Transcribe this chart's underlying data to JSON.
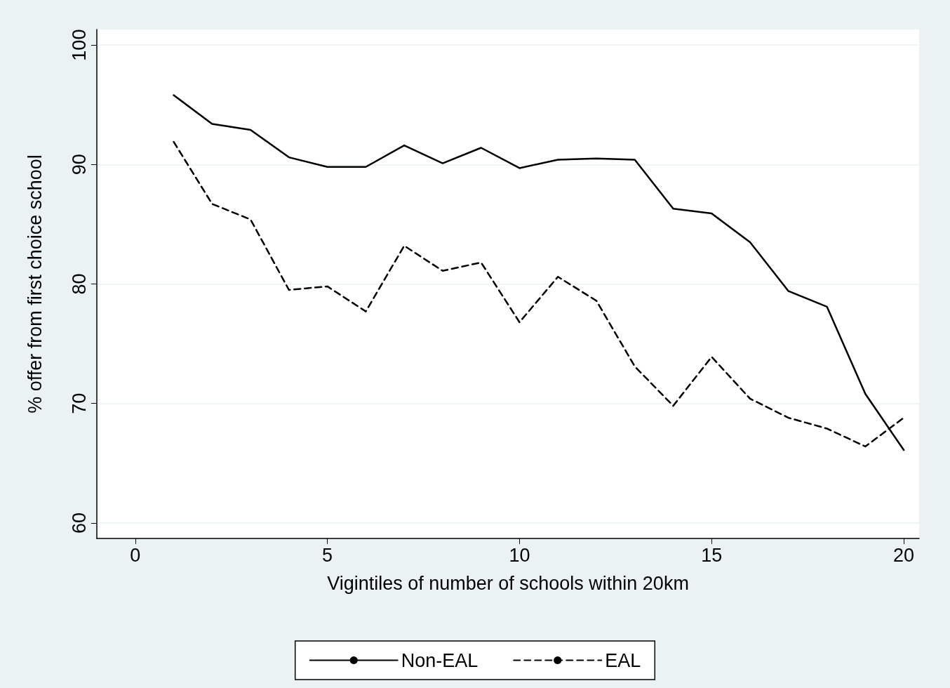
{
  "chart_data": {
    "type": "line",
    "xlabel": "Vigintiles of number of schools within 20km",
    "ylabel": "% offer from first choice school",
    "x": [
      1,
      2,
      3,
      4,
      5,
      6,
      7,
      8,
      9,
      10,
      11,
      12,
      13,
      14,
      15,
      16,
      17,
      18,
      19,
      20
    ],
    "series": [
      {
        "name": "Non-EAL",
        "color": "#000000",
        "line_style": "solid",
        "values": [
          95.8,
          93.4,
          92.9,
          90.6,
          89.8,
          89.8,
          91.6,
          90.1,
          91.4,
          89.7,
          90.4,
          90.5,
          90.4,
          86.3,
          85.9,
          83.5,
          79.4,
          78.1,
          70.8,
          66.1
        ]
      },
      {
        "name": "EAL",
        "color": "#000000",
        "line_style": "dashed",
        "values": [
          91.9,
          86.7,
          85.4,
          79.5,
          79.8,
          77.7,
          83.2,
          81.1,
          81.8,
          76.8,
          80.6,
          78.6,
          73.1,
          69.8,
          73.9,
          70.4,
          68.8,
          67.9,
          66.4,
          68.8
        ]
      }
    ],
    "xlim": [
      -1,
      20.4
    ],
    "xticks": [
      0,
      5,
      10,
      15,
      20
    ],
    "ylim": [
      58.7,
      101.3
    ],
    "yticks": [
      60,
      70,
      80,
      90,
      100
    ],
    "grid": "y",
    "legend": "bottom",
    "marker": "none"
  }
}
